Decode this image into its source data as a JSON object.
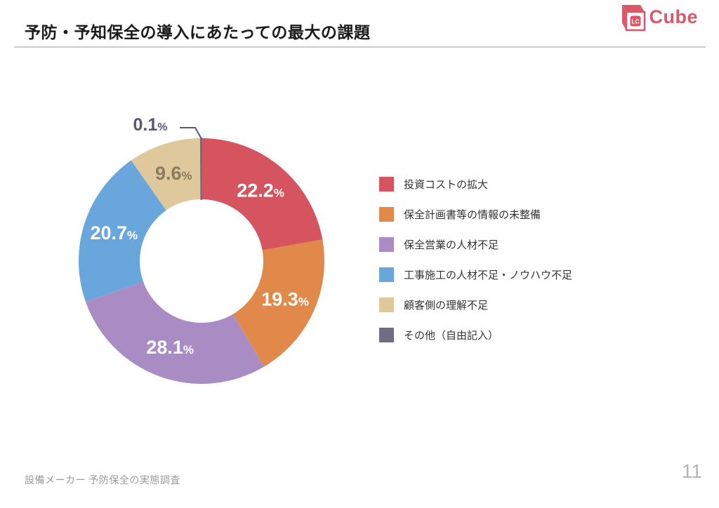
{
  "header": {
    "title": "予防・予知保全の導入にあたっての最大の課題",
    "logo": {
      "icon": "lc-cube-icon",
      "badge_text": "LC",
      "text": "Cube",
      "color": "#d9596b"
    }
  },
  "footer": {
    "source": "設備メーカー 予防保全の実態調査",
    "page_number": "11"
  },
  "chart_data": {
    "type": "pie",
    "subtype": "donut",
    "title": "予防・予知保全の導入にあたっての最大の課題",
    "unit": "%",
    "start_angle_deg": 0,
    "direction": "clockwise",
    "inner_radius_ratio": 0.5,
    "legend_position": "right",
    "series": [
      {
        "name": "投資コストの拡大",
        "value": 22.2,
        "color": "#d5545f",
        "label_color": "#ffffff",
        "label_outside": false
      },
      {
        "name": "保全計画書等の情報の未整備",
        "value": 19.3,
        "color": "#e0894b",
        "label_color": "#ffffff",
        "label_outside": false
      },
      {
        "name": "保全営業の人材不足",
        "value": 28.1,
        "color": "#a98cc3",
        "label_color": "#ffffff",
        "label_outside": false
      },
      {
        "name": "工事施工の人材不足・ノウハウ不足",
        "value": 20.7,
        "color": "#68a6db",
        "label_color": "#ffffff",
        "label_outside": false
      },
      {
        "name": "顧客側の理解不足",
        "value": 9.6,
        "color": "#dfc89c",
        "label_color": "#8a7d5e",
        "label_outside": false
      },
      {
        "name": "その他（自由記入）",
        "value": 0.1,
        "color": "#726b85",
        "label_color": "#5c5677",
        "label_outside": true
      }
    ]
  }
}
